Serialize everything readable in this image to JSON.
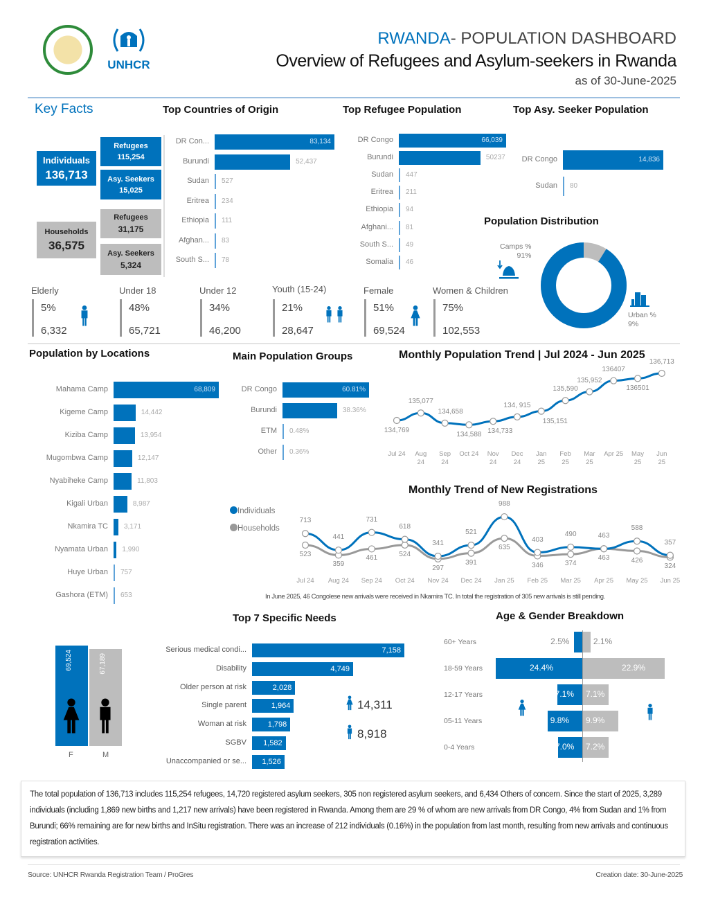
{
  "header": {
    "country": "RWANDA",
    "title_rest": "- POPULATION DASHBOARD",
    "subtitle": "Overview of Refugees and Asylum-seekers in Rwanda",
    "date": "as of 30-June-2025",
    "unhcr_logo": "UNHCR"
  },
  "key_facts": {
    "title": "Key Facts",
    "individuals": {
      "label": "Individuals",
      "value": "136,713"
    },
    "ind_refugees": {
      "label": "Refugees",
      "value": "115,254"
    },
    "ind_asy": {
      "label": "Asy. Seekers",
      "value": "15,025"
    },
    "households": {
      "label": "Households",
      "value": "36,575"
    },
    "hh_refugees": {
      "label": "Refugees",
      "value": "31,175"
    },
    "hh_asy": {
      "label": "Asy. Seekers",
      "value": "5,324"
    }
  },
  "colors": {
    "blue": "#0072bc",
    "gray": "#bdbdbd"
  },
  "origin": {
    "title": "Top Countries of Origin",
    "items": [
      {
        "label": "DR Con...",
        "value": 83134,
        "display": "83,134"
      },
      {
        "label": "Burundi",
        "value": 52437,
        "display": "52,437"
      },
      {
        "label": "Sudan",
        "value": 527,
        "display": "527"
      },
      {
        "label": "Eritrea",
        "value": 234,
        "display": "234"
      },
      {
        "label": "Ethiopia",
        "value": 111,
        "display": "111"
      },
      {
        "label": "Afghan...",
        "value": 83,
        "display": "83"
      },
      {
        "label": "South S...",
        "value": 78,
        "display": "78"
      }
    ]
  },
  "refugee_pop": {
    "title": "Top Refugee Population",
    "items": [
      {
        "label": "DR Congo",
        "value": 66039,
        "display": "66,039"
      },
      {
        "label": "Burundi",
        "value": 50237,
        "display": "50237"
      },
      {
        "label": "Sudan",
        "value": 447,
        "display": "447"
      },
      {
        "label": "Eritrea",
        "value": 211,
        "display": "211"
      },
      {
        "label": "Ethiopia",
        "value": 94,
        "display": "94"
      },
      {
        "label": "Afghani...",
        "value": 81,
        "display": "81"
      },
      {
        "label": "South S...",
        "value": 49,
        "display": "49"
      },
      {
        "label": "Somalia",
        "value": 46,
        "display": "46"
      }
    ]
  },
  "asy_pop": {
    "title": "Top Asy. Seeker Population",
    "items": [
      {
        "label": "DR Congo",
        "value": 14836,
        "display": "14,836"
      },
      {
        "label": "Sudan",
        "value": 80,
        "display": "80"
      }
    ]
  },
  "distribution": {
    "title": "Population Distribution",
    "camps_label": "Camps %",
    "camps_value": "91%",
    "urban_label": "Urban %",
    "urban_value": "9%",
    "camps_pct": 91,
    "urban_pct": 9
  },
  "stats": [
    {
      "label": "Elderly",
      "pct": "5%",
      "count": "6,332",
      "icon": "elderly-icon"
    },
    {
      "label": "Under 18",
      "pct": "48%",
      "count": "65,721"
    },
    {
      "label": "Under 12",
      "pct": "34%",
      "count": "46,200"
    },
    {
      "label": "Youth (15-24)",
      "pct": "21%",
      "count": "28,647",
      "icon": "youth-icon"
    },
    {
      "label": "Female",
      "pct": "51%",
      "count": "69,524",
      "icon": "female-icon"
    },
    {
      "label": "Women & Children",
      "pct": "75%",
      "count": "102,553"
    }
  ],
  "locations": {
    "title": "Population by Locations",
    "items": [
      {
        "label": "Mahama Camp",
        "value": 68809,
        "display": "68,809"
      },
      {
        "label": "Kigeme Camp",
        "value": 14442,
        "display": "14,442"
      },
      {
        "label": "Kiziba Camp",
        "value": 13954,
        "display": "13,954"
      },
      {
        "label": "Mugombwa Camp",
        "value": 12147,
        "display": "12,147"
      },
      {
        "label": "Nyabiheke Camp",
        "value": 11803,
        "display": "11,803"
      },
      {
        "label": "Kigali Urban",
        "value": 8987,
        "display": "8,987"
      },
      {
        "label": "Nkamira TC",
        "value": 3171,
        "display": "3,171"
      },
      {
        "label": "Nyamata Urban",
        "value": 1990,
        "display": "1,990"
      },
      {
        "label": "Huye Urban",
        "value": 757,
        "display": "757"
      },
      {
        "label": "Gashora (ETM)",
        "value": 653,
        "display": "653"
      }
    ]
  },
  "groups": {
    "title": "Main Population Groups",
    "items": [
      {
        "label": "DR Congo",
        "value": 60.81,
        "display": "60.81%"
      },
      {
        "label": "Burundi",
        "value": 38.36,
        "display": "38.36%"
      },
      {
        "label": "ETM",
        "value": 0.48,
        "display": "0.48%"
      },
      {
        "label": "Other",
        "value": 0.36,
        "display": "0.36%"
      }
    ]
  },
  "chart_data": [
    {
      "type": "line",
      "title": "Monthly Population Trend | Jul 2024 - Jun 2025",
      "categories": [
        "Jul 24",
        "Aug 24",
        "Sep 24",
        "Oct 24",
        "Nov 24",
        "Dec 24",
        "Jan 25",
        "Feb 25",
        "Mar 25",
        "Apr 25",
        "May 25",
        "Jun 25"
      ],
      "values": [
        134769,
        135077,
        134658,
        134588,
        134733,
        134915,
        135151,
        135590,
        135952,
        136407,
        136501,
        136713
      ],
      "labels": [
        "134,769",
        "135,077",
        "134,658",
        "134,588",
        "134,733",
        "134, 915",
        "135,151",
        "135,590",
        "135,952",
        "136407",
        "136501",
        "136,713"
      ]
    },
    {
      "type": "line",
      "title": "Monthly Trend of New Registrations",
      "categories": [
        "Jul 24",
        "Aug 24",
        "Sep 24",
        "Oct 24",
        "Nov 24",
        "Dec 24",
        "Jan 25",
        "Feb 25",
        "Mar 25",
        "Apr 25",
        "May 25",
        "Jun 25"
      ],
      "series": [
        {
          "name": "Individuals",
          "values": [
            713,
            441,
            731,
            618,
            341,
            521,
            988,
            403,
            490,
            463,
            588,
            357
          ]
        },
        {
          "name": "Households",
          "values": [
            523,
            359,
            461,
            524,
            297,
            391,
            635,
            346,
            374,
            463,
            426,
            324
          ]
        }
      ],
      "legend": "left"
    }
  ],
  "reg_note": "In June 2025, 46 Congolese new arrivals were received in Nkamira TC. In total the registration of 305 new arrivals is still pending.",
  "needs": {
    "title": "Top 7 Specific Needs",
    "items": [
      {
        "label": "Serious medical condi...",
        "value": 7158,
        "display": "7,158"
      },
      {
        "label": "Disability",
        "value": 4749,
        "display": "4,749"
      },
      {
        "label": "Older person at risk",
        "value": 2028,
        "display": "2,028"
      },
      {
        "label": "Single parent",
        "value": 1964,
        "display": "1,964"
      },
      {
        "label": "Woman at risk",
        "value": 1798,
        "display": "1,798"
      },
      {
        "label": "SGBV",
        "value": 1582,
        "display": "1,582"
      },
      {
        "label": "Unaccompanied or se...",
        "value": 1526,
        "display": "1,526"
      }
    ],
    "female_total": "14,311",
    "male_total": "8,918"
  },
  "gender": {
    "female": {
      "label": "F",
      "value": 69524,
      "display": "69,524"
    },
    "male": {
      "label": "M",
      "value": 67189,
      "display": "67,189"
    }
  },
  "age": {
    "title": "Age & Gender Breakdown",
    "rows": [
      {
        "label": "60+ Years",
        "f": 2.5,
        "m": 2.1,
        "f_display": "2.5%",
        "m_display": "2.1%"
      },
      {
        "label": "18-59 Years",
        "f": 24.4,
        "m": 22.9,
        "f_display": "24.4%",
        "m_display": "22.9%"
      },
      {
        "label": "12-17 Years",
        "f": 7.1,
        "m": 7.1,
        "f_display": "7.1%",
        "m_display": "7.1%"
      },
      {
        "label": "05-11 Years",
        "f": 9.8,
        "m": 9.9,
        "f_display": "9.8%",
        "m_display": "9.9%"
      },
      {
        "label": "0-4 Years",
        "f": 7.0,
        "m": 7.2,
        "f_display": "7.0%",
        "m_display": "7.2%"
      }
    ]
  },
  "summary": "The total population of 136,713 includes 115,254 refugees, 14,720 registered asylum seekers, 305 non registered asylum seekers, and 6,434 Others of concern. Since the start of 2025, 3,289 individuals (including 1,869 new births and 1,217 new arrivals) have been registered in Rwanda. Among them are 29 % of whom are new arrivals from DR Congo, 4% from Sudan and 1% from Burundi; 66% remaining are for new births and InSitu registration. There was an increase of 212 individuals (0.16%) in the population from last month, resulting from new arrivals and continuous registration activities.",
  "footer": {
    "source": "Source: UNHCR Rwanda Registration Team / ProGres",
    "created": "Creation date: 30-June-2025"
  }
}
